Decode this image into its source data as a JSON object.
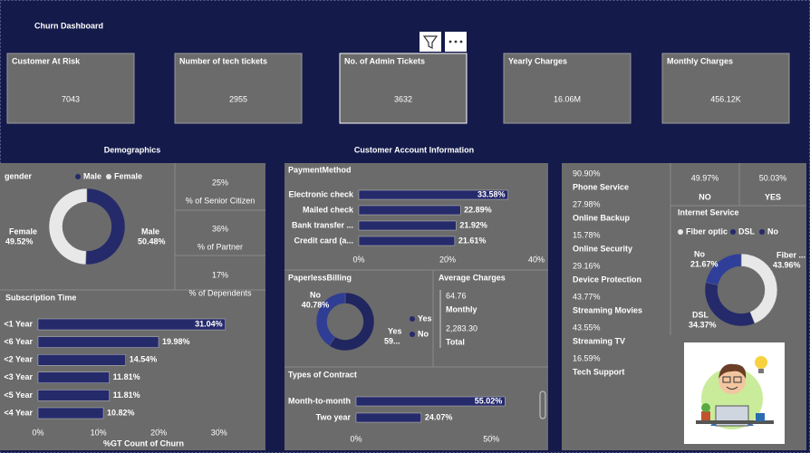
{
  "header": {
    "title": "Churn Dashboard"
  },
  "kpis": [
    {
      "label": "Customer At Risk",
      "value": 7043
    },
    {
      "label": "Number of tech tickets",
      "value": 2955
    },
    {
      "label": "No. of Admin Tickets",
      "value": 3632
    },
    {
      "label": "Yearly Charges",
      "value": "16.06M"
    },
    {
      "label": "Monthly Charges",
      "value": "456.12K"
    }
  ],
  "sections": {
    "demographics": "Demographics",
    "account": "Customer Account Information"
  },
  "demographic_cards": [
    {
      "value": "25%",
      "label": "% of Senior Citizen"
    },
    {
      "value": "36%",
      "label": "% of Partner"
    },
    {
      "value": "17%",
      "label": "% of Dependents"
    }
  ],
  "average_charges": {
    "title": "Average Charges",
    "items": [
      {
        "value": "64.76",
        "label": "Monthly"
      },
      {
        "value": "2,283.30",
        "label": "Total"
      }
    ]
  },
  "services": [
    {
      "value": "90.90%",
      "label": "Phone Service"
    },
    {
      "value": "27.98%",
      "label": "Online Backup"
    },
    {
      "value": "15.78%",
      "label": "Online Security"
    },
    {
      "value": "29.16%",
      "label": "Device Protection"
    },
    {
      "value": "43.77%",
      "label": "Streaming Movies"
    },
    {
      "value": "43.55%",
      "label": "Streaming TV"
    },
    {
      "value": "16.59%",
      "label": "Tech Support"
    }
  ],
  "churn_split": [
    {
      "value": "49.97%",
      "label": "NO"
    },
    {
      "value": "50.03%",
      "label": "YES"
    }
  ],
  "chart_data": [
    {
      "type": "donut",
      "legend_title": "gender",
      "categories": [
        "Male",
        "Female"
      ],
      "values": [
        50.48,
        49.52
      ],
      "value_labels": [
        "50.48%",
        "49.52%"
      ],
      "colors": [
        "#252a6b",
        "#e8e8e8"
      ]
    },
    {
      "type": "hbar",
      "title": "Subscription Time",
      "xlabel": "%GT Count of Churn",
      "categories": [
        "<1 Year",
        "<6 Year",
        "<2 Year",
        "<3 Year",
        "<5 Year",
        "<4 Year"
      ],
      "values": [
        31.04,
        19.98,
        14.54,
        11.81,
        11.81,
        10.82
      ],
      "value_labels": [
        "31.04%",
        "19.98%",
        "14.54%",
        "11.81%",
        "11.81%",
        "10.82%"
      ],
      "color": "#252a6b",
      "xlim": [
        0,
        35
      ],
      "xticks": [
        {
          "value": 0,
          "label": "0%"
        },
        {
          "value": 10,
          "label": "10%"
        },
        {
          "value": 20,
          "label": "20%"
        },
        {
          "value": 30,
          "label": "30%"
        }
      ]
    },
    {
      "type": "hbar",
      "title": "PaymentMethod",
      "categories": [
        "Electronic check",
        "Mailed check",
        "Bank transfer ...",
        "Credit card (a..."
      ],
      "values": [
        33.58,
        22.89,
        21.92,
        21.61
      ],
      "value_labels": [
        "33.58%",
        "22.89%",
        "21.92%",
        "21.61%"
      ],
      "color": "#252a6b",
      "xlim": [
        0,
        40
      ],
      "xticks": [
        {
          "value": 0,
          "label": "0%"
        },
        {
          "value": 20,
          "label": "20%"
        },
        {
          "value": 40,
          "label": "40%"
        }
      ]
    },
    {
      "type": "donut",
      "title": "PaperlessBilling",
      "categories": [
        "Yes",
        "No"
      ],
      "values": [
        59.22,
        40.78
      ],
      "value_labels": [
        "59...",
        "40.78%"
      ],
      "colors": [
        "#20265f",
        "#2f3d94"
      ]
    },
    {
      "type": "hbar",
      "title": "Types of Contract",
      "categories": [
        "Month-to-month",
        "Two year"
      ],
      "values": [
        55.02,
        24.07
      ],
      "value_labels": [
        "55.02%",
        "24.07%"
      ],
      "color": "#252a6b",
      "xlim": [
        0,
        66
      ],
      "xticks": [
        {
          "value": 0,
          "label": "0%"
        },
        {
          "value": 50,
          "label": "50%"
        }
      ]
    },
    {
      "type": "donut",
      "title": "Internet Service",
      "categories": [
        "Fiber optic",
        "DSL",
        "No"
      ],
      "label_names": [
        "Fiber ...",
        "DSL",
        "No"
      ],
      "values": [
        43.96,
        34.37,
        21.67
      ],
      "value_labels": [
        "43.96%",
        "34.37%",
        "21.67%"
      ],
      "colors": [
        "#e8e8e8",
        "#252a6b",
        "#2f3f99"
      ]
    }
  ]
}
